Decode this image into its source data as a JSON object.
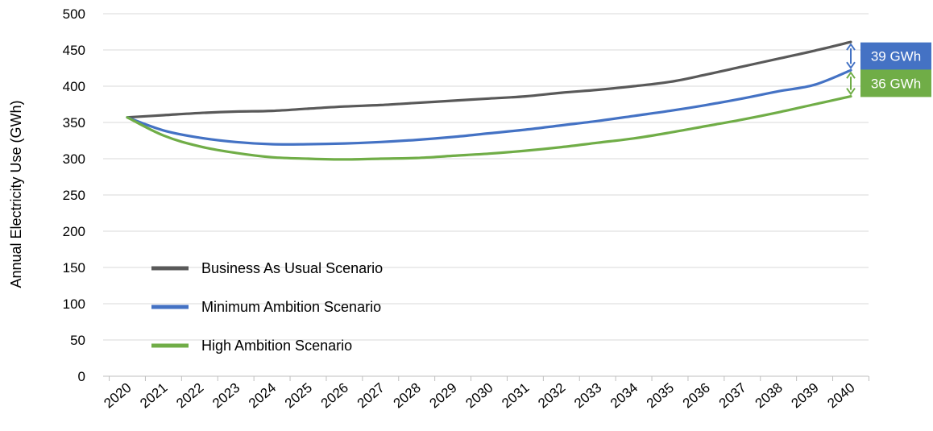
{
  "chart_data": {
    "type": "line",
    "title": "",
    "xlabel": "",
    "ylabel": "Annual Electricity Use (GWh)",
    "ylim": [
      0,
      500
    ],
    "yticks": [
      0,
      50,
      100,
      150,
      200,
      250,
      300,
      350,
      400,
      450,
      500
    ],
    "categories": [
      "2020",
      "2021",
      "2022",
      "2023",
      "2024",
      "2025",
      "2026",
      "2027",
      "2028",
      "2029",
      "2030",
      "2031",
      "2032",
      "2033",
      "2034",
      "2035",
      "2036",
      "2037",
      "2038",
      "2039",
      "2040"
    ],
    "grid": true,
    "legend_position": "bottom-left",
    "series": [
      {
        "name": "Business As Usual Scenario",
        "color": "#595959",
        "values": [
          357,
          360,
          363,
          365,
          366,
          369,
          372,
          374,
          377,
          380,
          383,
          386,
          391,
          395,
          400,
          406,
          416,
          427,
          438,
          449,
          461
        ]
      },
      {
        "name": "Minimum Ambition Scenario",
        "color": "#4472C4",
        "values": [
          357,
          339,
          329,
          323,
          320,
          320,
          321,
          323,
          326,
          330,
          335,
          340,
          346,
          352,
          359,
          366,
          374,
          383,
          393,
          402,
          422
        ]
      },
      {
        "name": "High Ambition Scenario",
        "color": "#70AD47",
        "values": [
          357,
          332,
          317,
          308,
          302,
          300,
          299,
          300,
          301,
          304,
          307,
          311,
          316,
          322,
          328,
          336,
          345,
          354,
          364,
          375,
          386
        ]
      }
    ],
    "annotations": [
      {
        "text": "39 GWh",
        "color": "#4472C4",
        "from": 461,
        "to": 422
      },
      {
        "text": "36 GWh",
        "color": "#70AD47",
        "from": 422,
        "to": 386
      }
    ]
  }
}
